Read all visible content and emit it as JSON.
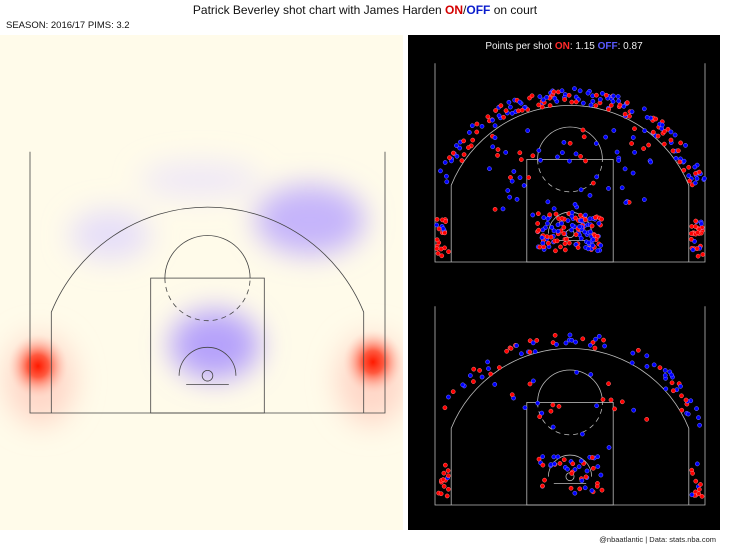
{
  "title": {
    "prefix": "Patrick Beverley shot chart with James Harden ",
    "on": "ON",
    "sep": "/",
    "off": "OFF",
    "suffix": " on court"
  },
  "subtitle": "SEASON: 2016/17 PIMS: 3.2",
  "credit": "@nbaatlantic | Data: stats.nba.com",
  "colors": {
    "on": "#ff0000",
    "off": "#0000ff",
    "heat_background": "#fffbea",
    "panel_background": "#000000"
  },
  "chart_data": [
    {
      "type": "heatmap",
      "description_key": "shot frequency difference ON vs OFF",
      "hotspots_on": [
        "left corner three",
        "right corner three"
      ],
      "hotspots_off": [
        "right wing three",
        "restricted area / paint",
        "left wing three"
      ]
    },
    {
      "type": "scatter",
      "title": {
        "label": "Points per shot ",
        "on_label": "ON",
        "on_value": ": 1.15",
        "off_label": "OFF",
        "off_value": ": 0.87"
      },
      "panels": [
        "all shots",
        "made shots"
      ],
      "series": [
        {
          "name": "ON",
          "color": "#ff0000"
        },
        {
          "name": "OFF",
          "color": "#0000ff"
        }
      ]
    }
  ]
}
